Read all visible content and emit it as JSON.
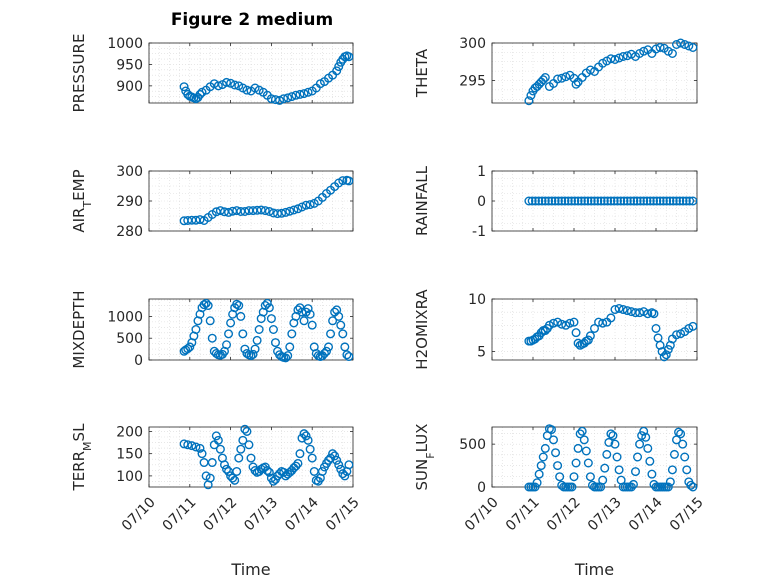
{
  "title": "Figure 2 medium",
  "colors": {
    "marker": "#0072BD",
    "grid": "#d9d9d9",
    "axis": "#262626"
  },
  "chart_data": [
    {
      "type": "scatter",
      "title": "Figure 2 medium",
      "ylabel": "PRESSURE",
      "ylabel_sub": "",
      "xlabel": "",
      "ylim": [
        860,
        1000
      ],
      "yticks": [
        900,
        950,
        1000
      ],
      "xlim": [
        0,
        5
      ],
      "xticks": [
        0,
        1,
        2,
        3,
        4,
        5
      ],
      "show_xticklabels": false,
      "grid": true,
      "x": [
        0.86,
        0.9,
        0.95,
        1.0,
        1.05,
        1.1,
        1.15,
        1.2,
        1.25,
        1.3,
        1.4,
        1.5,
        1.6,
        1.7,
        1.8,
        1.9,
        2.0,
        2.1,
        2.2,
        2.3,
        2.4,
        2.5,
        2.6,
        2.7,
        2.8,
        2.9,
        3.0,
        3.1,
        3.2,
        3.3,
        3.4,
        3.5,
        3.6,
        3.7,
        3.8,
        3.9,
        4.0,
        4.1,
        4.2,
        4.3,
        4.4,
        4.5,
        4.6,
        4.65,
        4.7,
        4.75,
        4.8,
        4.85,
        4.9
      ],
      "y": [
        898,
        888,
        880,
        876,
        874,
        872,
        870,
        873,
        880,
        885,
        890,
        898,
        905,
        900,
        903,
        908,
        906,
        902,
        900,
        895,
        890,
        888,
        895,
        890,
        885,
        878,
        870,
        868,
        866,
        870,
        872,
        875,
        878,
        880,
        882,
        885,
        888,
        895,
        905,
        910,
        918,
        925,
        935,
        945,
        955,
        962,
        968,
        970,
        968
      ]
    },
    {
      "type": "scatter",
      "ylabel": "THETA",
      "ylabel_sub": "",
      "xlabel": "",
      "ylim": [
        292,
        300
      ],
      "yticks": [
        295,
        300
      ],
      "xlim": [
        0,
        5
      ],
      "xticks": [
        0,
        1,
        2,
        3,
        4,
        5
      ],
      "show_xticklabels": false,
      "grid": true,
      "x": [
        0.9,
        0.95,
        1.0,
        1.05,
        1.1,
        1.15,
        1.2,
        1.25,
        1.3,
        1.4,
        1.5,
        1.6,
        1.7,
        1.8,
        1.9,
        2.0,
        2.05,
        2.1,
        2.2,
        2.3,
        2.4,
        2.5,
        2.6,
        2.7,
        2.8,
        2.9,
        3.0,
        3.1,
        3.2,
        3.3,
        3.4,
        3.5,
        3.6,
        3.7,
        3.8,
        3.9,
        4.0,
        4.1,
        4.2,
        4.3,
        4.4,
        4.5,
        4.6,
        4.7,
        4.8,
        4.9
      ],
      "y": [
        292.3,
        293,
        293.6,
        294,
        294.2,
        294.5,
        294.8,
        295.1,
        295.4,
        294.2,
        294.6,
        295.2,
        295.3,
        295.5,
        295.7,
        295.3,
        294.5,
        294.8,
        295.4,
        296,
        296.4,
        296.2,
        296.8,
        297.3,
        297.6,
        297.9,
        297.8,
        298,
        298.2,
        298.3,
        298.5,
        298.2,
        298.6,
        298.9,
        299.1,
        298.6,
        299.2,
        299.4,
        299.3,
        298.9,
        298.6,
        299.8,
        300,
        299.8,
        299.6,
        299.4
      ]
    },
    {
      "type": "scatter",
      "ylabel": "AIR",
      "ylabel_sub": "T",
      "ylabel_rest": "EMP",
      "xlabel": "",
      "ylim": [
        280,
        300
      ],
      "yticks": [
        280,
        290,
        300
      ],
      "xlim": [
        0,
        5
      ],
      "xticks": [
        0,
        1,
        2,
        3,
        4,
        5
      ],
      "show_xticklabels": false,
      "grid": true,
      "x": [
        0.86,
        0.95,
        1.05,
        1.15,
        1.25,
        1.35,
        1.45,
        1.55,
        1.65,
        1.75,
        1.85,
        1.95,
        2.05,
        2.15,
        2.25,
        2.35,
        2.45,
        2.55,
        2.65,
        2.75,
        2.85,
        2.95,
        3.05,
        3.15,
        3.25,
        3.35,
        3.45,
        3.55,
        3.65,
        3.75,
        3.85,
        3.95,
        4.05,
        4.15,
        4.25,
        4.35,
        4.45,
        4.55,
        4.65,
        4.75,
        4.85,
        4.9
      ],
      "y": [
        283.4,
        283.5,
        283.6,
        283.6,
        283.8,
        283.5,
        284.5,
        285.5,
        286.4,
        286.8,
        286.4,
        286.2,
        286.6,
        286.8,
        286.5,
        286.5,
        286.8,
        286.8,
        286.9,
        287,
        286.8,
        286.5,
        286,
        285.8,
        285.9,
        286.2,
        286.6,
        287,
        287.4,
        288,
        288.6,
        288.8,
        289.2,
        290,
        291.2,
        292.5,
        293.6,
        294.8,
        296,
        296.8,
        296.9,
        296.7
      ]
    },
    {
      "type": "scatter",
      "ylabel": "RAINFALL",
      "ylabel_sub": "",
      "xlabel": "",
      "ylim": [
        -1,
        1
      ],
      "yticks": [
        -1,
        0,
        1
      ],
      "xlim": [
        0,
        5
      ],
      "xticks": [
        0,
        1,
        2,
        3,
        4,
        5
      ],
      "show_xticklabels": false,
      "grid": true,
      "x": [
        0.9,
        0.98,
        1.06,
        1.14,
        1.22,
        1.3,
        1.38,
        1.46,
        1.54,
        1.62,
        1.7,
        1.78,
        1.86,
        1.94,
        2.02,
        2.1,
        2.18,
        2.26,
        2.34,
        2.42,
        2.5,
        2.58,
        2.66,
        2.74,
        2.82,
        2.9,
        2.98,
        3.06,
        3.14,
        3.22,
        3.3,
        3.38,
        3.46,
        3.54,
        3.62,
        3.7,
        3.78,
        3.86,
        3.94,
        4.02,
        4.1,
        4.18,
        4.26,
        4.34,
        4.42,
        4.5,
        4.58,
        4.66,
        4.74,
        4.82,
        4.9
      ],
      "y": [
        0,
        0,
        0,
        0,
        0,
        0,
        0,
        0,
        0,
        0,
        0,
        0,
        0,
        0,
        0,
        0,
        0,
        0,
        0,
        0,
        0,
        0,
        0,
        0,
        0,
        0,
        0,
        0,
        0,
        0,
        0,
        0,
        0,
        0,
        0,
        0,
        0,
        0,
        0,
        0,
        0,
        0,
        0,
        0,
        0,
        0,
        0,
        0,
        0,
        0,
        0
      ]
    },
    {
      "type": "scatter",
      "ylabel": "MIXDEPTH",
      "ylabel_sub": "",
      "xlabel": "",
      "ylim": [
        0,
        1400
      ],
      "yticks": [
        0,
        500,
        1000
      ],
      "xlim": [
        0,
        5
      ],
      "xticks": [
        0,
        1,
        2,
        3,
        4,
        5
      ],
      "show_xticklabels": false,
      "grid": true,
      "x": [
        0.86,
        0.9,
        0.95,
        1.0,
        1.05,
        1.1,
        1.15,
        1.2,
        1.25,
        1.3,
        1.35,
        1.4,
        1.45,
        1.5,
        1.55,
        1.6,
        1.65,
        1.7,
        1.75,
        1.8,
        1.85,
        1.9,
        1.95,
        2.0,
        2.05,
        2.1,
        2.15,
        2.2,
        2.25,
        2.3,
        2.35,
        2.4,
        2.45,
        2.5,
        2.55,
        2.6,
        2.65,
        2.7,
        2.75,
        2.8,
        2.85,
        2.9,
        2.95,
        3.0,
        3.05,
        3.1,
        3.15,
        3.2,
        3.25,
        3.3,
        3.35,
        3.4,
        3.45,
        3.5,
        3.55,
        3.6,
        3.65,
        3.7,
        3.75,
        3.8,
        3.85,
        3.9,
        3.95,
        4.0,
        4.05,
        4.1,
        4.15,
        4.2,
        4.25,
        4.3,
        4.35,
        4.4,
        4.45,
        4.5,
        4.55,
        4.6,
        4.65,
        4.7,
        4.75,
        4.8,
        4.85,
        4.9
      ],
      "y": [
        200,
        230,
        260,
        300,
        400,
        550,
        700,
        900,
        1050,
        1200,
        1270,
        1300,
        1250,
        900,
        500,
        200,
        150,
        120,
        110,
        130,
        200,
        350,
        600,
        850,
        1050,
        1200,
        1280,
        1250,
        1000,
        600,
        250,
        150,
        120,
        100,
        130,
        250,
        450,
        700,
        950,
        1100,
        1250,
        1300,
        1200,
        950,
        700,
        400,
        200,
        120,
        80,
        60,
        50,
        100,
        300,
        600,
        850,
        1000,
        1150,
        1200,
        1100,
        900,
        1100,
        1180,
        1050,
        800,
        300,
        150,
        100,
        80,
        100,
        150,
        200,
        300,
        600,
        900,
        1100,
        1150,
        1000,
        800,
        600,
        300,
        120,
        80
      ]
    },
    {
      "type": "scatter",
      "ylabel": "H2OMIXRA",
      "ylabel_sub": "",
      "xlabel": "",
      "ylim": [
        4.2,
        10
      ],
      "yticks": [
        5,
        10
      ],
      "xlim": [
        0,
        5
      ],
      "xticks": [
        0,
        1,
        2,
        3,
        4,
        5
      ],
      "show_xticklabels": false,
      "grid": true,
      "x": [
        0.9,
        0.95,
        1.0,
        1.05,
        1.1,
        1.15,
        1.2,
        1.25,
        1.3,
        1.35,
        1.4,
        1.5,
        1.6,
        1.7,
        1.8,
        1.9,
        2.0,
        2.05,
        2.1,
        2.15,
        2.2,
        2.25,
        2.3,
        2.35,
        2.4,
        2.5,
        2.6,
        2.7,
        2.8,
        2.9,
        3.0,
        3.1,
        3.2,
        3.3,
        3.4,
        3.5,
        3.6,
        3.7,
        3.8,
        3.9,
        3.95,
        4.0,
        4.05,
        4.1,
        4.15,
        4.2,
        4.25,
        4.3,
        4.35,
        4.4,
        4.5,
        4.6,
        4.7,
        4.8,
        4.9
      ],
      "y": [
        6,
        6,
        6.1,
        6.2,
        6.4,
        6.5,
        6.8,
        7,
        7,
        7.2,
        7.5,
        7.7,
        7.8,
        7.6,
        7.5,
        7.7,
        7.8,
        6.8,
        5.8,
        5.6,
        5.7,
        5.8,
        6,
        6.1,
        6.5,
        7.2,
        7.8,
        7.7,
        7.8,
        8.2,
        9,
        9.1,
        9,
        8.9,
        8.8,
        8.7,
        8.7,
        8.8,
        8.6,
        8.7,
        8.6,
        7.2,
        6.3,
        5.6,
        5,
        4.5,
        4.7,
        5.2,
        5.6,
        6.2,
        6.6,
        6.7,
        6.9,
        7.2,
        7.4
      ]
    },
    {
      "type": "scatter",
      "ylabel": "TERR",
      "ylabel_sub": "M",
      "ylabel_rest": "SL",
      "xlabel": "Time",
      "ylim": [
        75,
        210
      ],
      "yticks": [
        100,
        150,
        200
      ],
      "xlim": [
        0,
        5
      ],
      "xticks": [
        0,
        1,
        2,
        3,
        4,
        5
      ],
      "xticklabels": [
        "07/10",
        "07/11",
        "07/12",
        "07/13",
        "07/14",
        "07/15"
      ],
      "show_xticklabels": true,
      "grid": true,
      "x": [
        0.86,
        0.95,
        1.05,
        1.15,
        1.25,
        1.3,
        1.35,
        1.4,
        1.45,
        1.5,
        1.55,
        1.6,
        1.65,
        1.7,
        1.75,
        1.8,
        1.85,
        1.9,
        1.95,
        2.0,
        2.05,
        2.1,
        2.15,
        2.2,
        2.25,
        2.3,
        2.35,
        2.4,
        2.45,
        2.5,
        2.55,
        2.6,
        2.65,
        2.7,
        2.75,
        2.8,
        2.85,
        2.9,
        2.95,
        3.0,
        3.05,
        3.1,
        3.15,
        3.2,
        3.25,
        3.3,
        3.35,
        3.4,
        3.45,
        3.5,
        3.55,
        3.6,
        3.65,
        3.7,
        3.75,
        3.8,
        3.85,
        3.9,
        3.95,
        4.0,
        4.05,
        4.1,
        4.15,
        4.2,
        4.25,
        4.3,
        4.35,
        4.4,
        4.45,
        4.5,
        4.55,
        4.6,
        4.65,
        4.7,
        4.75,
        4.8,
        4.85,
        4.9
      ],
      "y": [
        172,
        170,
        168,
        165,
        162,
        150,
        130,
        100,
        80,
        95,
        130,
        170,
        190,
        180,
        160,
        140,
        125,
        115,
        110,
        100,
        95,
        90,
        110,
        140,
        160,
        180,
        205,
        200,
        170,
        140,
        120,
        112,
        108,
        110,
        115,
        118,
        120,
        112,
        108,
        95,
        88,
        92,
        100,
        105,
        110,
        108,
        100,
        104,
        108,
        112,
        118,
        122,
        128,
        150,
        185,
        195,
        190,
        180,
        160,
        140,
        110,
        90,
        88,
        95,
        110,
        120,
        128,
        135,
        140,
        150,
        145,
        135,
        125,
        115,
        105,
        100,
        110,
        125
      ]
    },
    {
      "type": "scatter",
      "ylabel": "SUN",
      "ylabel_sub": "F",
      "ylabel_rest": "LUX",
      "xlabel": "Time",
      "ylim": [
        0,
        700
      ],
      "yticks": [
        0,
        500
      ],
      "xlim": [
        0,
        5
      ],
      "xticks": [
        0,
        1,
        2,
        3,
        4,
        5
      ],
      "xticklabels": [
        "07/10",
        "07/11",
        "07/12",
        "07/13",
        "07/14",
        "07/15"
      ],
      "show_xticklabels": true,
      "grid": true,
      "x": [
        0.9,
        0.95,
        1.0,
        1.05,
        1.1,
        1.15,
        1.2,
        1.25,
        1.3,
        1.35,
        1.4,
        1.45,
        1.5,
        1.55,
        1.6,
        1.65,
        1.7,
        1.75,
        1.8,
        1.85,
        1.9,
        1.95,
        2.0,
        2.05,
        2.1,
        2.15,
        2.2,
        2.25,
        2.3,
        2.35,
        2.4,
        2.45,
        2.5,
        2.55,
        2.6,
        2.65,
        2.7,
        2.75,
        2.8,
        2.85,
        2.9,
        2.95,
        3.0,
        3.05,
        3.1,
        3.15,
        3.2,
        3.25,
        3.3,
        3.35,
        3.4,
        3.45,
        3.5,
        3.55,
        3.6,
        3.65,
        3.7,
        3.75,
        3.8,
        3.85,
        3.9,
        3.95,
        4.0,
        4.05,
        4.1,
        4.15,
        4.2,
        4.25,
        4.3,
        4.35,
        4.4,
        4.45,
        4.5,
        4.55,
        4.6,
        4.65,
        4.7,
        4.75,
        4.8,
        4.85,
        4.9
      ],
      "y": [
        0,
        0,
        0,
        0,
        50,
        150,
        250,
        350,
        450,
        600,
        680,
        670,
        550,
        400,
        250,
        120,
        20,
        0,
        0,
        0,
        0,
        0,
        120,
        280,
        450,
        620,
        650,
        550,
        420,
        280,
        120,
        20,
        0,
        0,
        0,
        0,
        80,
        220,
        380,
        520,
        620,
        600,
        500,
        350,
        200,
        80,
        0,
        0,
        0,
        0,
        0,
        30,
        180,
        350,
        500,
        600,
        650,
        580,
        450,
        300,
        150,
        30,
        0,
        0,
        0,
        0,
        0,
        0,
        0,
        60,
        200,
        380,
        550,
        640,
        620,
        500,
        350,
        200,
        60,
        20,
        0
      ]
    }
  ]
}
